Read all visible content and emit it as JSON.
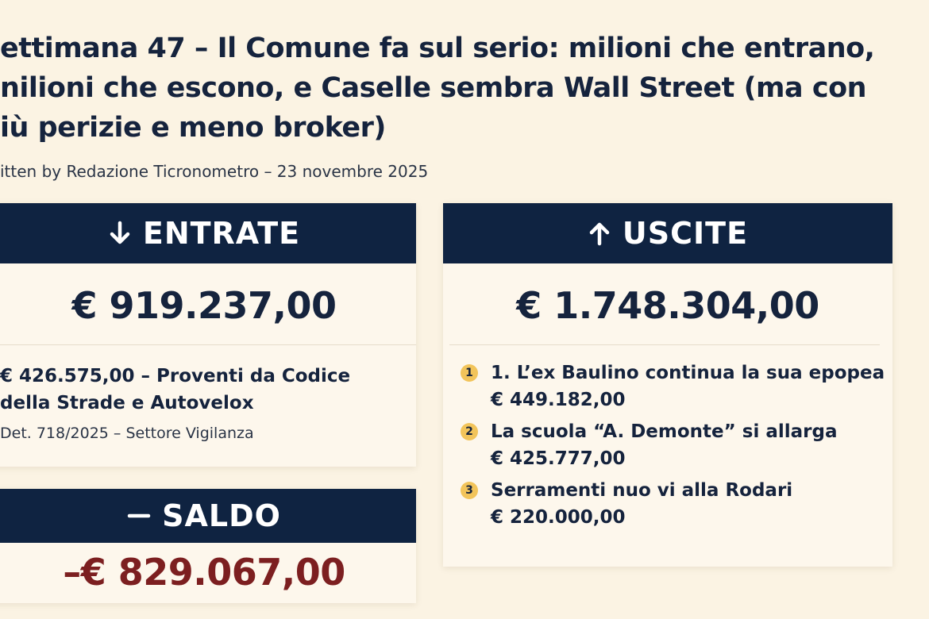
{
  "header": {
    "title_lines": [
      "ettimana 47 – Il Comune fa sul serio: milioni che entrano,",
      "nilioni che escono, e Caselle sembra Wall Street (ma con",
      "iù perizie e meno broker)"
    ],
    "byline": "itten by Redazione Ticronometro – 23 novembre 2025"
  },
  "entrate": {
    "label": "ENTRATE",
    "total": "€ 919.237,00",
    "item_lines": [
      "€ 426.575,00 – Proventi da Codice",
      "della Strade e Autovelox"
    ],
    "note": "Det. 718/2025 – Settore Vigilanza"
  },
  "saldo": {
    "label": "SALDO",
    "value": "–€ 829.067,00"
  },
  "uscite": {
    "label": "USCITE",
    "total": "€ 1.748.304,00",
    "items": [
      {
        "badge": "1",
        "text": "1. L’ex Baulino continua la sua epopea",
        "amount": "€ 449.182,00"
      },
      {
        "badge": "2",
        "text": "La scuola “A. Demonte” si allarga",
        "amount": "€ 425.777,00"
      },
      {
        "badge": "3",
        "text": "Serramenti nuo vi alla Rodari",
        "amount": "€ 220.000,00"
      }
    ]
  }
}
